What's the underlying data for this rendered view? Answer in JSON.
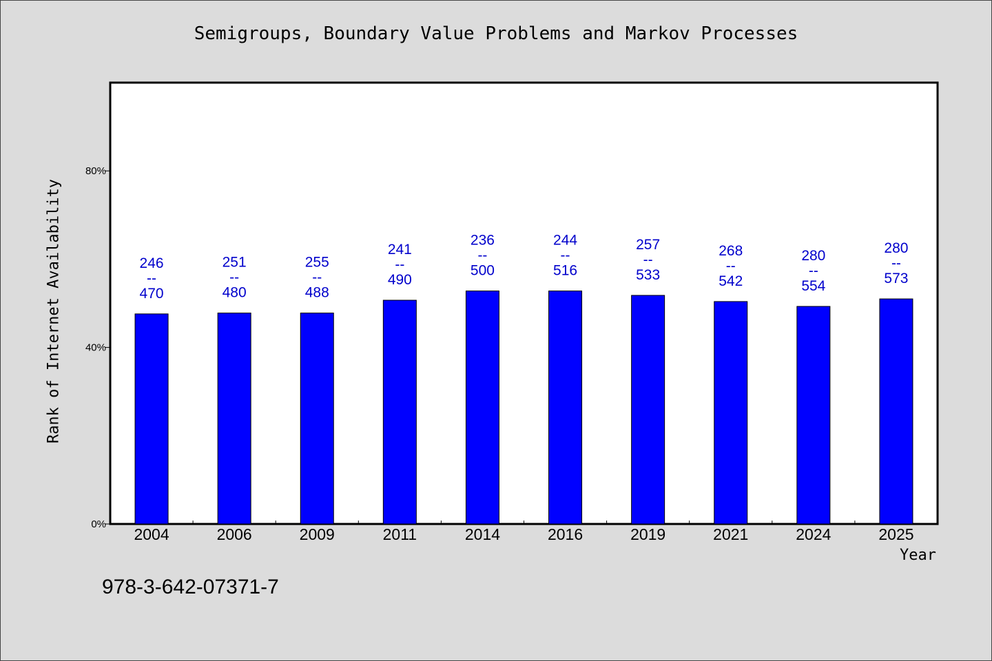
{
  "chart_data": {
    "type": "bar",
    "title": "Semigroups, Boundary Value Problems and Markov Processes",
    "xlabel": "Year",
    "ylabel": "Rank of Internet Availability",
    "categories": [
      "2004",
      "2006",
      "2009",
      "2011",
      "2014",
      "2016",
      "2019",
      "2021",
      "2024",
      "2025"
    ],
    "values": [
      47.6,
      47.8,
      47.8,
      50.7,
      52.8,
      52.8,
      51.8,
      50.4,
      49.3,
      51.0
    ],
    "value_unit": "%",
    "bar_labels": [
      {
        "top": "246",
        "mid": "--",
        "bottom": "470"
      },
      {
        "top": "251",
        "mid": "--",
        "bottom": "480"
      },
      {
        "top": "255",
        "mid": "--",
        "bottom": "488"
      },
      {
        "top": "241",
        "mid": "--",
        "bottom": "490"
      },
      {
        "top": "236",
        "mid": "--",
        "bottom": "500"
      },
      {
        "top": "244",
        "mid": "--",
        "bottom": "516"
      },
      {
        "top": "257",
        "mid": "--",
        "bottom": "533"
      },
      {
        "top": "268",
        "mid": "--",
        "bottom": "542"
      },
      {
        "top": "280",
        "mid": "--",
        "bottom": "554"
      },
      {
        "top": "280",
        "mid": "--",
        "bottom": "573"
      }
    ],
    "yticks": [
      0,
      40,
      80
    ],
    "ytick_labels": [
      "0%",
      "40%",
      "80%"
    ],
    "ylim": [
      0,
      100
    ],
    "grid": false,
    "legend": "none",
    "bar_color": "#0000ff",
    "label_color": "#0000cc"
  },
  "footer": {
    "isbn": "978-3-642-07371-7"
  }
}
